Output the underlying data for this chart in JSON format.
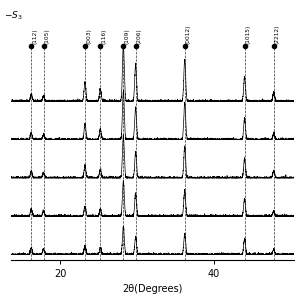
{
  "title": "",
  "xlabel": "2θ(Degrees)",
  "ylabel": "",
  "xlim": [
    13.5,
    50.5
  ],
  "xticks": [
    20,
    40
  ],
  "background_color": "#ffffff",
  "label_color": "#000000",
  "corner_label": "$-S_3$",
  "num_traces": 5,
  "peaks": [
    {
      "x": 16.2,
      "label": "(112)"
    },
    {
      "x": 17.8,
      "label": "(105)"
    },
    {
      "x": 23.2,
      "label": "(003)"
    },
    {
      "x": 25.2,
      "label": "(116)"
    },
    {
      "x": 28.2,
      "label": "(109)"
    },
    {
      "x": 29.8,
      "label": "(206)"
    },
    {
      "x": 36.2,
      "label": "(0012)"
    },
    {
      "x": 44.0,
      "label": "(1015)"
    },
    {
      "x": 47.8,
      "label": "(2̅212)"
    }
  ],
  "trace_offsets": [
    0.0,
    0.22,
    0.44,
    0.66,
    0.88
  ],
  "peak_heights_by_trace": [
    [
      0.04,
      0.03,
      0.05,
      0.04,
      0.16,
      0.1,
      0.12,
      0.09,
      0.03
    ],
    [
      0.04,
      0.03,
      0.06,
      0.04,
      0.2,
      0.13,
      0.15,
      0.1,
      0.03
    ],
    [
      0.04,
      0.03,
      0.07,
      0.05,
      0.24,
      0.15,
      0.18,
      0.11,
      0.04
    ],
    [
      0.04,
      0.03,
      0.09,
      0.06,
      0.28,
      0.18,
      0.21,
      0.12,
      0.04
    ],
    [
      0.04,
      0.03,
      0.11,
      0.07,
      0.32,
      0.21,
      0.24,
      0.14,
      0.05
    ]
  ],
  "sigma": 0.12,
  "noise_level": 0.004,
  "line_width": 0.5,
  "dot_size": 3.0,
  "label_fontsize": 4.2,
  "xlabel_fontsize": 7,
  "xtick_fontsize": 7
}
